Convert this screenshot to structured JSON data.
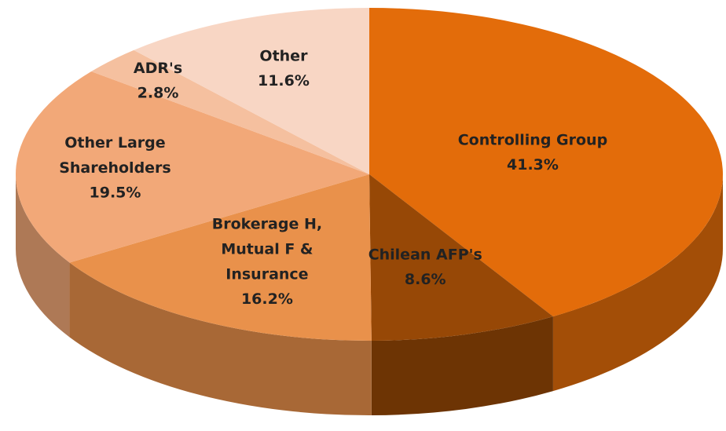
{
  "chart_data": {
    "type": "pie",
    "categories": [
      "Controlling Group",
      "Chilean AFP's",
      "Brokerage H, Mutual F & Insurance",
      "Other Large Shareholders",
      "ADR's",
      "Other"
    ],
    "values": [
      41.3,
      8.6,
      16.2,
      19.5,
      2.8,
      11.6
    ],
    "value_labels": [
      "41.3%",
      "8.6%",
      "16.2%",
      "19.5%",
      "2.8%",
      "11.6%"
    ],
    "colors": [
      "#e36c0a",
      "#974806",
      "#e9914b",
      "#f2a878",
      "#f5c09f",
      "#f8d6c4"
    ]
  }
}
